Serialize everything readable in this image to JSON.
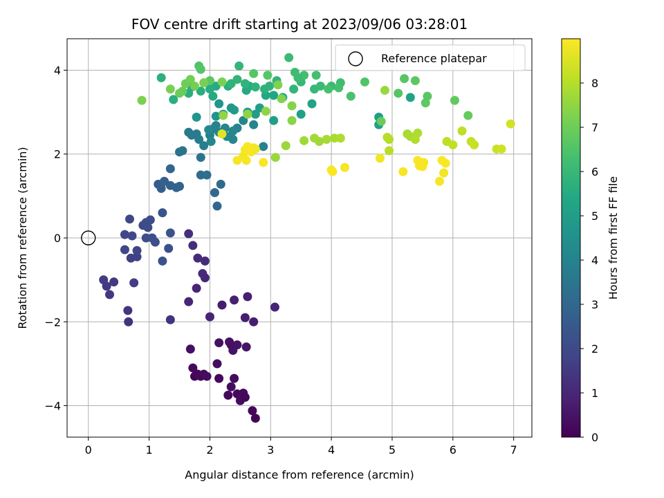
{
  "chart_data": {
    "type": "scatter",
    "title": "FOV centre drift starting at 2023/09/06 03:28:01",
    "xlabel": "Angular distance from reference (arcmin)",
    "ylabel": "Rotation from reference (arcmin)",
    "xlim": [
      -0.35,
      7.3
    ],
    "ylim": [
      -4.75,
      4.75
    ],
    "xticks": [
      0,
      1,
      2,
      3,
      4,
      5,
      6,
      7
    ],
    "yticks": [
      -4,
      -2,
      0,
      2,
      4
    ],
    "xtick_labels": [
      "0",
      "1",
      "2",
      "3",
      "4",
      "5",
      "6",
      "7"
    ],
    "ytick_labels": [
      "−4",
      "−2",
      "0",
      "2",
      "4"
    ],
    "grid": true,
    "legend": {
      "placement": "top-right",
      "entries": [
        "Reference platepar"
      ]
    },
    "reference_point": {
      "x": 0,
      "y": 0,
      "label": "Reference platepar"
    },
    "colorbar": {
      "label": "Hours from first FF file",
      "colormap": "viridis",
      "range": [
        0,
        9
      ],
      "ticks": [
        0,
        1,
        2,
        3,
        4,
        5,
        6,
        7,
        8
      ],
      "tick_labels": [
        "0",
        "1",
        "2",
        "3",
        "4",
        "5",
        "6",
        "7",
        "8"
      ]
    },
    "columns": [
      "x_arcmin",
      "y_arcmin",
      "hours"
    ],
    "points": [
      [
        1.75,
        -3.3,
        0.1
      ],
      [
        1.8,
        -3.25,
        0.15
      ],
      [
        1.85,
        -3.3,
        0.2
      ],
      [
        1.9,
        -3.25,
        0.25
      ],
      [
        1.95,
        -3.3,
        0.3
      ],
      [
        1.72,
        -3.1,
        0.2
      ],
      [
        1.68,
        -2.65,
        0.35
      ],
      [
        2.15,
        -3.35,
        0.2
      ],
      [
        2.12,
        -3.0,
        0.3
      ],
      [
        2.3,
        -3.75,
        0.2
      ],
      [
        2.35,
        -3.55,
        0.3
      ],
      [
        2.4,
        -3.35,
        0.25
      ],
      [
        2.45,
        -3.72,
        0.2
      ],
      [
        2.5,
        -3.88,
        0.3
      ],
      [
        2.55,
        -3.7,
        0.25
      ],
      [
        2.58,
        -3.8,
        0.2
      ],
      [
        2.7,
        -4.12,
        0.1
      ],
      [
        2.75,
        -4.3,
        0.1
      ],
      [
        2.15,
        -2.5,
        0.4
      ],
      [
        2.32,
        -2.48,
        0.45
      ],
      [
        2.38,
        -2.68,
        0.4
      ],
      [
        2.45,
        -2.55,
        0.5
      ],
      [
        2.6,
        -2.6,
        0.45
      ],
      [
        2.35,
        -2.55,
        0.4
      ],
      [
        2.2,
        -1.6,
        0.7
      ],
      [
        2.4,
        -1.48,
        0.8
      ],
      [
        2.58,
        -1.9,
        0.75
      ],
      [
        2.62,
        -1.4,
        0.8
      ],
      [
        2.72,
        -2.0,
        0.7
      ],
      [
        3.07,
        -1.65,
        0.9
      ],
      [
        2.0,
        -1.88,
        0.9
      ],
      [
        1.65,
        -1.52,
        0.95
      ],
      [
        1.78,
        -1.2,
        0.9
      ],
      [
        1.92,
        -0.95,
        1.0
      ],
      [
        1.88,
        -0.85,
        1.05
      ],
      [
        1.92,
        -0.55,
        1.1
      ],
      [
        1.8,
        -0.48,
        1.1
      ],
      [
        1.72,
        -0.18,
        1.15
      ],
      [
        1.65,
        0.1,
        1.2
      ],
      [
        1.35,
        -1.95,
        1.3
      ],
      [
        0.65,
        -1.73,
        1.35
      ],
      [
        0.66,
        -2.0,
        1.3
      ],
      [
        0.3,
        -1.15,
        1.5
      ],
      [
        0.35,
        -1.35,
        1.45
      ],
      [
        0.42,
        -1.05,
        1.5
      ],
      [
        0.25,
        -1.0,
        1.55
      ],
      [
        0.75,
        -1.07,
        1.6
      ],
      [
        0.7,
        -0.48,
        1.7
      ],
      [
        0.8,
        -0.45,
        1.75
      ],
      [
        0.8,
        -0.3,
        1.8
      ],
      [
        0.6,
        -0.28,
        1.85
      ],
      [
        0.6,
        0.08,
        1.9
      ],
      [
        0.72,
        0.05,
        1.95
      ],
      [
        0.68,
        0.45,
        1.9
      ],
      [
        0.9,
        0.3,
        2.0
      ],
      [
        0.95,
        0.37,
        2.05
      ],
      [
        1.02,
        0.43,
        2.1
      ],
      [
        0.98,
        0.25,
        2.05
      ],
      [
        0.95,
        0.0,
        2.1
      ],
      [
        1.05,
        0.0,
        2.15
      ],
      [
        1.1,
        -0.1,
        2.2
      ],
      [
        1.22,
        -0.55,
        2.25
      ],
      [
        1.32,
        -0.25,
        2.2
      ],
      [
        1.35,
        0.12,
        2.3
      ],
      [
        1.22,
        0.6,
        2.35
      ],
      [
        1.15,
        1.28,
        2.6
      ],
      [
        1.2,
        1.18,
        2.65
      ],
      [
        1.25,
        1.35,
        2.7
      ],
      [
        1.35,
        1.25,
        2.75
      ],
      [
        1.45,
        1.2,
        2.8
      ],
      [
        1.5,
        1.23,
        2.85
      ],
      [
        1.35,
        1.65,
        2.9
      ],
      [
        2.12,
        0.76,
        3.0
      ],
      [
        2.08,
        1.08,
        3.05
      ],
      [
        2.18,
        1.28,
        3.1
      ],
      [
        1.85,
        1.5,
        3.2
      ],
      [
        1.95,
        1.5,
        3.25
      ],
      [
        1.5,
        2.05,
        3.4
      ],
      [
        1.55,
        2.08,
        3.45
      ],
      [
        1.85,
        1.92,
        3.45
      ],
      [
        1.65,
        2.52,
        3.6
      ],
      [
        1.7,
        2.45,
        3.65
      ],
      [
        1.78,
        2.48,
        3.7
      ],
      [
        1.82,
        2.35,
        3.75
      ],
      [
        1.9,
        2.2,
        3.8
      ],
      [
        2.0,
        2.45,
        3.85
      ],
      [
        2.05,
        2.6,
        3.9
      ],
      [
        2.1,
        2.68,
        3.95
      ],
      [
        2.15,
        2.52,
        4.0
      ],
      [
        2.25,
        2.62,
        4.05
      ],
      [
        2.38,
        2.35,
        4.1
      ],
      [
        2.45,
        2.62,
        4.0
      ],
      [
        2.55,
        2.8,
        4.05
      ],
      [
        2.72,
        2.7,
        4.1
      ],
      [
        2.88,
        2.18,
        4.0
      ],
      [
        2.38,
        2.55,
        4.05
      ],
      [
        2.28,
        2.42,
        4.1
      ],
      [
        2.02,
        2.3,
        4.15
      ],
      [
        1.98,
        2.58,
        4.2
      ],
      [
        1.78,
        2.88,
        4.6
      ],
      [
        2.1,
        2.9,
        4.65
      ],
      [
        2.15,
        3.2,
        4.7
      ],
      [
        2.22,
        2.95,
        4.75
      ],
      [
        2.35,
        3.1,
        4.8
      ],
      [
        2.4,
        3.05,
        4.85
      ],
      [
        2.62,
        3.0,
        4.9
      ],
      [
        2.75,
        2.95,
        4.95
      ],
      [
        2.82,
        3.1,
        5.0
      ],
      [
        3.05,
        2.8,
        5.05
      ],
      [
        3.5,
        2.95,
        5.1
      ],
      [
        3.68,
        3.2,
        5.15
      ],
      [
        4.78,
        2.88,
        5.0
      ],
      [
        4.78,
        2.7,
        5.05
      ],
      [
        5.3,
        3.35,
        5.2
      ],
      [
        3.05,
        3.4,
        5.3
      ],
      [
        3.2,
        3.35,
        5.35
      ],
      [
        2.92,
        3.4,
        5.4
      ],
      [
        2.6,
        3.52,
        5.45
      ],
      [
        2.65,
        3.62,
        5.5
      ],
      [
        2.3,
        3.62,
        5.55
      ],
      [
        2.1,
        3.62,
        5.5
      ],
      [
        2.05,
        3.38,
        5.45
      ],
      [
        2.0,
        3.55,
        5.6
      ],
      [
        1.85,
        3.5,
        5.65
      ],
      [
        1.7,
        3.6,
        5.7
      ],
      [
        1.65,
        3.45,
        5.65
      ],
      [
        1.4,
        3.3,
        5.6
      ],
      [
        1.2,
        3.82,
        5.7
      ],
      [
        2.35,
        3.68,
        5.8
      ],
      [
        2.45,
        3.78,
        5.85
      ],
      [
        2.48,
        4.1,
        5.9
      ],
      [
        2.58,
        3.68,
        5.85
      ],
      [
        2.75,
        3.6,
        5.8
      ],
      [
        2.9,
        3.55,
        5.75
      ],
      [
        2.98,
        3.62,
        5.8
      ],
      [
        3.1,
        3.75,
        5.85
      ],
      [
        3.38,
        3.55,
        5.9
      ],
      [
        3.5,
        3.72,
        5.95
      ],
      [
        3.72,
        3.55,
        6.0
      ],
      [
        3.82,
        3.62,
        6.05
      ],
      [
        4.0,
        3.62,
        6.1
      ],
      [
        4.15,
        3.7,
        6.15
      ],
      [
        3.3,
        4.3,
        6.1
      ],
      [
        3.4,
        3.95,
        6.2
      ],
      [
        3.55,
        3.88,
        6.25
      ],
      [
        3.45,
        3.82,
        6.2
      ],
      [
        3.75,
        3.88,
        6.3
      ],
      [
        3.95,
        3.55,
        6.35
      ],
      [
        4.12,
        3.58,
        6.3
      ],
      [
        4.32,
        3.38,
        6.4
      ],
      [
        4.55,
        3.72,
        6.5
      ],
      [
        5.1,
        3.45,
        6.6
      ],
      [
        5.2,
        3.8,
        6.65
      ],
      [
        5.38,
        3.75,
        6.7
      ],
      [
        5.55,
        3.22,
        6.75
      ],
      [
        5.58,
        3.38,
        6.7
      ],
      [
        6.03,
        3.28,
        6.8
      ],
      [
        6.25,
        2.92,
        6.85
      ],
      [
        4.82,
        2.78,
        6.9
      ],
      [
        1.82,
        4.1,
        6.5
      ],
      [
        1.85,
        4.02,
        6.55
      ],
      [
        2.95,
        3.88,
        6.6
      ],
      [
        2.72,
        3.92,
        6.6
      ],
      [
        2.0,
        3.75,
        6.7
      ],
      [
        1.55,
        3.5,
        6.9
      ],
      [
        1.5,
        3.45,
        6.95
      ],
      [
        1.6,
        3.68,
        7.0
      ],
      [
        1.68,
        3.78,
        7.05
      ],
      [
        1.75,
        3.62,
        7.1
      ],
      [
        1.9,
        3.7,
        7.15
      ],
      [
        1.35,
        3.55,
        7.15
      ],
      [
        0.88,
        3.28,
        7.2
      ],
      [
        2.2,
        3.72,
        7.2
      ],
      [
        3.12,
        3.65,
        7.25
      ],
      [
        3.18,
        3.32,
        7.3
      ],
      [
        3.35,
        3.15,
        7.35
      ],
      [
        3.35,
        2.8,
        7.4
      ],
      [
        2.92,
        3.02,
        7.45
      ],
      [
        2.62,
        2.95,
        7.45
      ],
      [
        2.22,
        2.92,
        7.5
      ],
      [
        3.08,
        1.92,
        7.6
      ],
      [
        3.25,
        2.2,
        7.65
      ],
      [
        3.55,
        2.32,
        7.7
      ],
      [
        3.72,
        2.38,
        7.75
      ],
      [
        3.8,
        2.3,
        7.7
      ],
      [
        3.92,
        2.35,
        7.8
      ],
      [
        4.05,
        2.38,
        7.85
      ],
      [
        4.15,
        2.38,
        7.9
      ],
      [
        4.88,
        3.52,
        7.6
      ],
      [
        5.25,
        2.48,
        7.8
      ],
      [
        5.3,
        2.42,
        7.85
      ],
      [
        5.42,
        2.5,
        7.9
      ],
      [
        5.38,
        2.35,
        7.95
      ],
      [
        4.95,
        2.35,
        7.95
      ],
      [
        4.92,
        2.4,
        8.0
      ],
      [
        4.95,
        2.08,
        8.05
      ],
      [
        5.9,
        2.3,
        8.1
      ],
      [
        6.0,
        2.22,
        8.15
      ],
      [
        6.15,
        2.55,
        8.1
      ],
      [
        6.3,
        2.3,
        8.2
      ],
      [
        6.35,
        2.22,
        8.25
      ],
      [
        6.72,
        2.12,
        8.3
      ],
      [
        6.8,
        2.12,
        8.35
      ],
      [
        6.95,
        2.72,
        8.4
      ],
      [
        2.2,
        2.48,
        8.6
      ],
      [
        2.45,
        1.85,
        8.9
      ],
      [
        2.55,
        1.95,
        8.85
      ],
      [
        2.58,
        2.1,
        8.9
      ],
      [
        2.62,
        2.18,
        8.95
      ],
      [
        2.68,
        2.05,
        8.9
      ],
      [
        2.72,
        2.15,
        8.95
      ],
      [
        2.75,
        2.12,
        8.85
      ],
      [
        2.6,
        1.85,
        8.9
      ],
      [
        2.88,
        1.8,
        8.95
      ],
      [
        4.0,
        1.62,
        8.9
      ],
      [
        4.02,
        1.58,
        8.95
      ],
      [
        4.22,
        1.68,
        8.9
      ],
      [
        4.8,
        1.9,
        8.85
      ],
      [
        5.18,
        1.58,
        8.9
      ],
      [
        5.42,
        1.85,
        8.95
      ],
      [
        5.45,
        1.72,
        8.9
      ],
      [
        5.5,
        1.7,
        8.95
      ],
      [
        5.52,
        1.8,
        8.9
      ],
      [
        5.82,
        1.85,
        8.95
      ],
      [
        5.78,
        1.35,
        8.9
      ],
      [
        5.88,
        1.78,
        8.95
      ],
      [
        5.85,
        1.55,
        8.85
      ]
    ]
  }
}
